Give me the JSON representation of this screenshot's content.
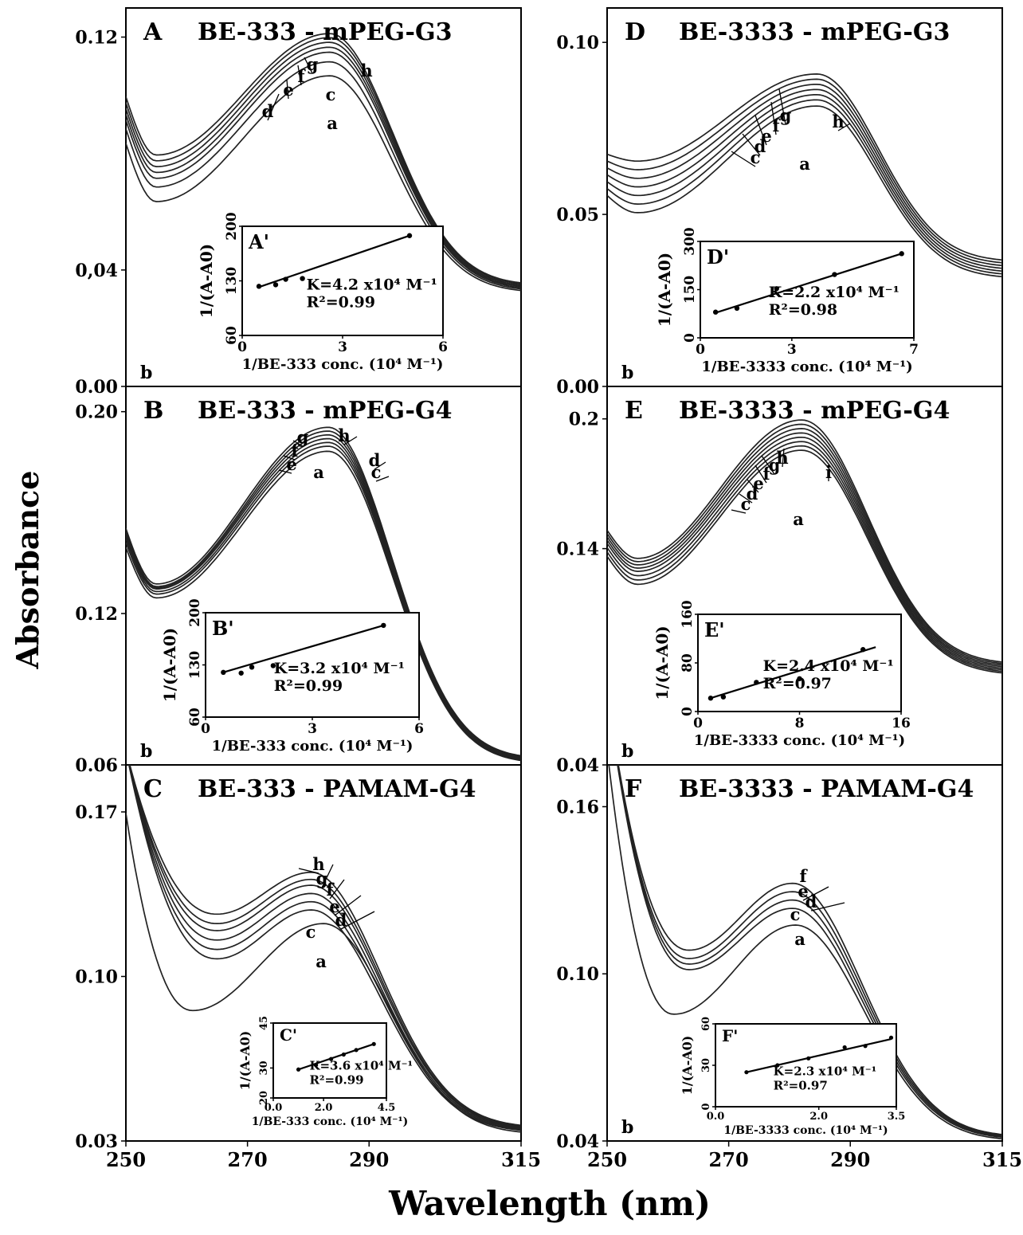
{
  "figure": {
    "ylabel": "Absorbance",
    "xlabel": "Wavelength (nm)",
    "xticks": [
      "250",
      "270",
      "290",
      "315"
    ]
  },
  "chart_data": [
    {
      "type": "line",
      "panel": "A",
      "title": "BE-333 - mPEG-G3",
      "yticks": [
        "0.00",
        "0,04",
        "0.12"
      ],
      "xlim": [
        250,
        315
      ],
      "ylim": [
        0.0,
        0.13
      ],
      "buffer_label": "b",
      "curves": [
        {
          "name": "a",
          "peak_wavelength": 283.5,
          "peak_absorbance": 0.1067,
          "start_absorbance": 0.0835,
          "min_absorbance": 0.0635,
          "end_absorbance": 0.0322
        },
        {
          "name": "c",
          "peak_wavelength": 283.5,
          "peak_absorbance": 0.1115,
          "start_absorbance": 0.0885,
          "min_absorbance": 0.0685,
          "end_absorbance": 0.0327
        },
        {
          "name": "d",
          "peak_wavelength": 283.5,
          "peak_absorbance": 0.1148,
          "start_absorbance": 0.0915,
          "min_absorbance": 0.0715,
          "end_absorbance": 0.0331
        },
        {
          "name": "e",
          "peak_wavelength": 283.5,
          "peak_absorbance": 0.1165,
          "start_absorbance": 0.0935,
          "min_absorbance": 0.0735,
          "end_absorbance": 0.0335
        },
        {
          "name": "f",
          "peak_wavelength": 283.5,
          "peak_absorbance": 0.1182,
          "start_absorbance": 0.0955,
          "min_absorbance": 0.0755,
          "end_absorbance": 0.0339
        },
        {
          "name": "g",
          "peak_wavelength": 283.5,
          "peak_absorbance": 0.1198,
          "start_absorbance": 0.0975,
          "min_absorbance": 0.0775,
          "end_absorbance": 0.0343
        },
        {
          "name": "h",
          "peak_wavelength": 283.5,
          "peak_absorbance": 0.1212,
          "start_absorbance": 0.0995,
          "min_absorbance": 0.0795,
          "end_absorbance": 0.0347
        }
      ],
      "inset": {
        "label": "A'",
        "ylabel": "1/(A-A0)",
        "xlabel": "1/BE-333 conc. (10⁴ M⁻¹)",
        "xticks": [
          "0",
          "3",
          "6"
        ],
        "yticks": [
          "60",
          "130",
          "200"
        ],
        "xlim": [
          0,
          6
        ],
        "ylim": [
          60,
          200
        ],
        "points": [
          [
            0.5,
            123
          ],
          [
            1.0,
            125
          ],
          [
            1.3,
            132
          ],
          [
            1.8,
            133
          ],
          [
            5.0,
            188
          ]
        ],
        "fit": [
          [
            0.5,
            122
          ],
          [
            5.0,
            188
          ]
        ],
        "k_text": "K=4.2 x10⁴ M⁻¹",
        "r2_text": "R²=0.99"
      }
    },
    {
      "type": "line",
      "panel": "B",
      "title": "BE-333 - mPEG-G4",
      "yticks": [
        "0.06",
        "0.12",
        "0.20"
      ],
      "xlim": [
        250,
        315
      ],
      "ylim": [
        0.06,
        0.21
      ],
      "buffer_label": "b",
      "curves": [
        {
          "name": "a",
          "peak_wavelength": 283.3,
          "peak_absorbance": 0.1843,
          "start_absorbance": 0.1462,
          "min_absorbance": 0.1262,
          "end_absorbance": 0.0605
        },
        {
          "name": "c",
          "peak_wavelength": 283.3,
          "peak_absorbance": 0.1863,
          "start_absorbance": 0.1482,
          "min_absorbance": 0.1277,
          "end_absorbance": 0.0608
        },
        {
          "name": "d",
          "peak_wavelength": 283.3,
          "peak_absorbance": 0.1878,
          "start_absorbance": 0.1497,
          "min_absorbance": 0.1287,
          "end_absorbance": 0.0611
        },
        {
          "name": "e",
          "peak_wavelength": 283.3,
          "peak_absorbance": 0.1893,
          "start_absorbance": 0.1507,
          "min_absorbance": 0.1297,
          "end_absorbance": 0.0614
        },
        {
          "name": "f",
          "peak_wavelength": 283.3,
          "peak_absorbance": 0.1908,
          "start_absorbance": 0.1517,
          "min_absorbance": 0.1302,
          "end_absorbance": 0.0617
        },
        {
          "name": "g",
          "peak_wavelength": 283.3,
          "peak_absorbance": 0.1923,
          "start_absorbance": 0.1527,
          "min_absorbance": 0.1307,
          "end_absorbance": 0.062
        },
        {
          "name": "h",
          "peak_wavelength": 283.3,
          "peak_absorbance": 0.1938,
          "start_absorbance": 0.1537,
          "min_absorbance": 0.1317,
          "end_absorbance": 0.0623
        }
      ],
      "inset": {
        "label": "B'",
        "ylabel": "1/(A-A0)",
        "xlabel": "1/BE-333 conc. (10⁴ M⁻¹)",
        "xticks": [
          "0",
          "3",
          "6"
        ],
        "yticks": [
          "60",
          "130",
          "200"
        ],
        "xlim": [
          0,
          6
        ],
        "ylim": [
          60,
          200
        ],
        "points": [
          [
            0.5,
            120
          ],
          [
            1.0,
            119
          ],
          [
            1.3,
            127
          ],
          [
            1.9,
            129
          ],
          [
            5.0,
            183
          ]
        ],
        "fit": [
          [
            0.5,
            120
          ],
          [
            5.0,
            183
          ]
        ],
        "k_text": "K=3.2 x10⁴ M⁻¹",
        "r2_text": "R²=0.99"
      }
    },
    {
      "type": "line",
      "panel": "C",
      "title": "BE-333 - PAMAM-G4",
      "yticks": [
        "0.03",
        "0.10",
        "0.17"
      ],
      "xlim": [
        250,
        315
      ],
      "ylim": [
        0.03,
        0.19
      ],
      "buffer_label": "",
      "curves": [
        {
          "name": "a",
          "peak_wavelength": 282.5,
          "peak_absorbance": 0.1225,
          "start_absorbance": 0.1695,
          "min_absorbance": 0.0855,
          "min_wavelength": 261,
          "end_absorbance": 0.0329
        },
        {
          "name": "c",
          "peak_wavelength": 280.5,
          "peak_absorbance": 0.1283,
          "start_absorbance": 0.1965,
          "min_absorbance": 0.1075,
          "min_wavelength": 265,
          "end_absorbance": 0.0336
        },
        {
          "name": "d",
          "peak_wavelength": 280.5,
          "peak_absorbance": 0.1318,
          "start_absorbance": 0.1965,
          "min_absorbance": 0.1115,
          "min_wavelength": 265,
          "end_absorbance": 0.034
        },
        {
          "name": "e",
          "peak_wavelength": 280.5,
          "peak_absorbance": 0.1353,
          "start_absorbance": 0.1965,
          "min_absorbance": 0.1155,
          "min_wavelength": 265,
          "end_absorbance": 0.0344
        },
        {
          "name": "f",
          "peak_wavelength": 280.5,
          "peak_absorbance": 0.1388,
          "start_absorbance": 0.1965,
          "min_absorbance": 0.1195,
          "min_wavelength": 265,
          "end_absorbance": 0.0348
        },
        {
          "name": "g",
          "peak_wavelength": 280.5,
          "peak_absorbance": 0.1413,
          "start_absorbance": 0.1965,
          "min_absorbance": 0.1225,
          "min_wavelength": 265,
          "end_absorbance": 0.0352
        },
        {
          "name": "h",
          "peak_wavelength": 280.5,
          "peak_absorbance": 0.1443,
          "start_absorbance": 0.1965,
          "min_absorbance": 0.1265,
          "min_wavelength": 265,
          "end_absorbance": 0.0356
        }
      ],
      "inset": {
        "label": "C'",
        "ylabel": "1/(A-A0)",
        "xlabel": "1/BE-333 conc. (10⁴ M⁻¹)",
        "xticks": [
          "0.0",
          "2.0",
          "4.5"
        ],
        "yticks": [
          "20",
          "30",
          "45"
        ],
        "xlim": [
          0,
          4.5
        ],
        "ylim": [
          20,
          45
        ],
        "points": [
          [
            1.0,
            29.5
          ],
          [
            1.7,
            31.0
          ],
          [
            2.3,
            33.0
          ],
          [
            2.8,
            34.5
          ],
          [
            3.3,
            36.0
          ],
          [
            4.0,
            38.0
          ]
        ],
        "fit": [
          [
            1.0,
            29.5
          ],
          [
            4.0,
            38.0
          ]
        ],
        "k_text": "K=3.6 x10⁴ M⁻¹",
        "r2_text": "R²=0.99"
      }
    },
    {
      "type": "line",
      "panel": "D",
      "title": "BE-3333 - mPEG-G3",
      "yticks": [
        "0.00",
        "0.05",
        "0.10"
      ],
      "xlim": [
        250,
        315
      ],
      "ylim": [
        0.0,
        0.11
      ],
      "buffer_label": "b",
      "curves": [
        {
          "name": "a",
          "peak_wavelength": 284.5,
          "peak_absorbance": 0.0815,
          "start_absorbance": 0.0555,
          "min_absorbance": 0.0505,
          "end_absorbance": 0.0314
        },
        {
          "name": "c",
          "peak_wavelength": 284.5,
          "peak_absorbance": 0.0833,
          "start_absorbance": 0.0575,
          "min_absorbance": 0.053,
          "end_absorbance": 0.0322
        },
        {
          "name": "d",
          "peak_wavelength": 284.5,
          "peak_absorbance": 0.0848,
          "start_absorbance": 0.0595,
          "min_absorbance": 0.0555,
          "end_absorbance": 0.033
        },
        {
          "name": "e",
          "peak_wavelength": 284.5,
          "peak_absorbance": 0.0863,
          "start_absorbance": 0.0615,
          "min_absorbance": 0.058,
          "end_absorbance": 0.0338
        },
        {
          "name": "f",
          "peak_wavelength": 284.5,
          "peak_absorbance": 0.0878,
          "start_absorbance": 0.0635,
          "min_absorbance": 0.0605,
          "end_absorbance": 0.0346
        },
        {
          "name": "g",
          "peak_wavelength": 284.5,
          "peak_absorbance": 0.0893,
          "start_absorbance": 0.0655,
          "min_absorbance": 0.063,
          "end_absorbance": 0.0354
        },
        {
          "name": "h",
          "peak_wavelength": 284.5,
          "peak_absorbance": 0.0908,
          "start_absorbance": 0.0675,
          "min_absorbance": 0.0655,
          "end_absorbance": 0.0362
        }
      ],
      "inset": {
        "label": "D'",
        "ylabel": "1/(A-A0)",
        "xlabel": "1/BE-3333 conc. (10⁴ M⁻¹)",
        "xticks": [
          "0",
          "3",
          "7"
        ],
        "yticks": [
          "0",
          "150",
          "300"
        ],
        "xlim": [
          0,
          7
        ],
        "ylim": [
          0,
          300
        ],
        "points": [
          [
            0.5,
            80
          ],
          [
            1.2,
            92
          ],
          [
            2.5,
            153
          ],
          [
            4.4,
            197
          ],
          [
            6.6,
            262
          ]
        ],
        "fit": [
          [
            0.5,
            78
          ],
          [
            6.6,
            262
          ]
        ],
        "k_text": "K=2.2 x10⁴ M⁻¹",
        "r2_text": "R²=0.98"
      }
    },
    {
      "type": "line",
      "panel": "E",
      "title": "BE-3333 - mPEG-G4",
      "yticks": [
        "0.04",
        "0.14",
        "0.2"
      ],
      "xlim": [
        250,
        315
      ],
      "ylim": [
        0.04,
        0.215
      ],
      "buffer_label": "b",
      "curves": [
        {
          "name": "a",
          "peak_wavelength": 282,
          "peak_absorbance": 0.1855,
          "start_absorbance": 0.1365,
          "min_absorbance": 0.1235,
          "end_absorbance": 0.0815
        },
        {
          "name": "c",
          "peak_wavelength": 282,
          "peak_absorbance": 0.1875,
          "start_absorbance": 0.1385,
          "min_absorbance": 0.1255,
          "end_absorbance": 0.0822
        },
        {
          "name": "d",
          "peak_wavelength": 282,
          "peak_absorbance": 0.1895,
          "start_absorbance": 0.1405,
          "min_absorbance": 0.1275,
          "end_absorbance": 0.0829
        },
        {
          "name": "e",
          "peak_wavelength": 282,
          "peak_absorbance": 0.1915,
          "start_absorbance": 0.1425,
          "min_absorbance": 0.1295,
          "end_absorbance": 0.0836
        },
        {
          "name": "f",
          "peak_wavelength": 282,
          "peak_absorbance": 0.1935,
          "start_absorbance": 0.144,
          "min_absorbance": 0.131,
          "end_absorbance": 0.0843
        },
        {
          "name": "g",
          "peak_wavelength": 282,
          "peak_absorbance": 0.1955,
          "start_absorbance": 0.1455,
          "min_absorbance": 0.1325,
          "end_absorbance": 0.085
        },
        {
          "name": "h",
          "peak_wavelength": 282,
          "peak_absorbance": 0.1975,
          "start_absorbance": 0.147,
          "min_absorbance": 0.134,
          "end_absorbance": 0.0857
        },
        {
          "name": "i",
          "peak_wavelength": 282,
          "peak_absorbance": 0.1995,
          "start_absorbance": 0.1485,
          "min_absorbance": 0.1355,
          "end_absorbance": 0.0864
        }
      ],
      "inset": {
        "label": "E'",
        "ylabel": "1/(A-A0)",
        "xlabel": "1/BE-3333 conc. (10⁴ M⁻¹)",
        "xticks": [
          "0",
          "8",
          "16"
        ],
        "yticks": [
          "0",
          "80",
          "160"
        ],
        "xlim": [
          0,
          16
        ],
        "ylim": [
          0,
          160
        ],
        "points": [
          [
            1.0,
            22
          ],
          [
            2.0,
            24
          ],
          [
            4.6,
            48
          ],
          [
            8.0,
            54
          ],
          [
            13.0,
            102
          ]
        ],
        "fit": [
          [
            1.0,
            22
          ],
          [
            14.0,
            106
          ]
        ],
        "k_text": "K=2.4 x10⁴ M⁻¹",
        "r2_text": "R²=0.97"
      }
    },
    {
      "type": "line",
      "panel": "F",
      "title": "BE-3333 - PAMAM-G4",
      "yticks": [
        "0.04",
        "0.10",
        "0.16"
      ],
      "xlim": [
        250,
        315
      ],
      "ylim": [
        0.04,
        0.175
      ],
      "buffer_label": "b",
      "curves": [
        {
          "name": "a",
          "peak_wavelength": 281,
          "peak_absorbance": 0.1175,
          "start_absorbance": 0.1805,
          "min_absorbance": 0.0855,
          "min_wavelength": 261,
          "end_absorbance": 0.04
        },
        {
          "name": "c",
          "peak_wavelength": 280.5,
          "peak_absorbance": 0.1235,
          "start_absorbance": 0.2005,
          "min_absorbance": 0.1015,
          "min_wavelength": 263.5,
          "end_absorbance": 0.0405
        },
        {
          "name": "d",
          "peak_wavelength": 280.5,
          "peak_absorbance": 0.1265,
          "start_absorbance": 0.2005,
          "min_absorbance": 0.1035,
          "min_wavelength": 263.5,
          "end_absorbance": 0.0408
        },
        {
          "name": "e",
          "peak_wavelength": 280.5,
          "peak_absorbance": 0.1295,
          "start_absorbance": 0.2005,
          "min_absorbance": 0.1055,
          "min_wavelength": 263.5,
          "end_absorbance": 0.0411
        },
        {
          "name": "f",
          "peak_wavelength": 280.5,
          "peak_absorbance": 0.1325,
          "start_absorbance": 0.2005,
          "min_absorbance": 0.1085,
          "min_wavelength": 263.5,
          "end_absorbance": 0.0414
        }
      ],
      "inset": {
        "label": "F'",
        "ylabel": "1/(A-A0)",
        "xlabel": "1/BE-3333 conc. (10⁴ M⁻¹)",
        "xticks": [
          "0.0",
          "2.0",
          "3.5"
        ],
        "yticks": [
          "0",
          "30",
          "60"
        ],
        "xlim": [
          0,
          3.5
        ],
        "ylim": [
          0,
          60
        ],
        "points": [
          [
            0.6,
            25
          ],
          [
            1.2,
            30
          ],
          [
            1.8,
            35
          ],
          [
            2.5,
            43
          ],
          [
            2.9,
            44
          ],
          [
            3.4,
            50
          ]
        ],
        "fit": [
          [
            0.6,
            25
          ],
          [
            3.4,
            49
          ]
        ],
        "k_text": "K=2.3 x10⁴ M⁻¹",
        "r2_text": "R²=0.97"
      }
    }
  ]
}
